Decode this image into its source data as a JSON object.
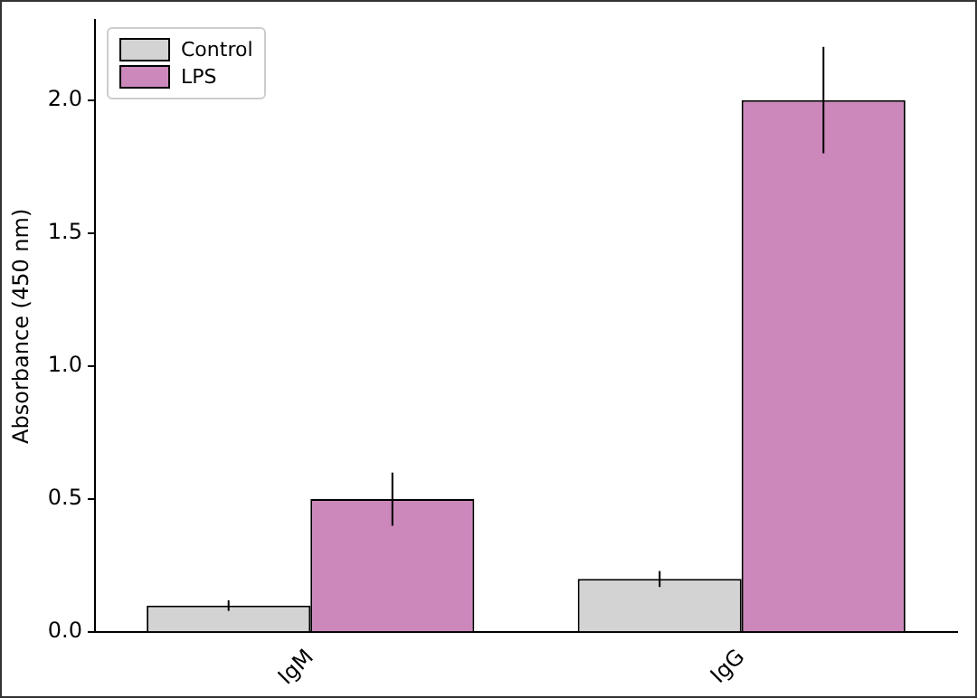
{
  "chart_data": {
    "type": "bar",
    "ylabel": "Absorbance (450 nm)",
    "categories": [
      "IgM",
      "IgG"
    ],
    "series": [
      {
        "name": "Control",
        "color": "#d3d3d3",
        "values": [
          0.1,
          0.2
        ],
        "errors": [
          0.02,
          0.03
        ]
      },
      {
        "name": "LPS",
        "color": "#cc88bb",
        "values": [
          0.5,
          2.0
        ],
        "errors": [
          0.1,
          0.2
        ]
      }
    ],
    "ylim": [
      0,
      2.3
    ],
    "yticks": [
      {
        "value": 0,
        "label": "0.0"
      },
      0.5,
      {
        "value": 1,
        "label": "1.0"
      },
      1.5,
      {
        "value": 2,
        "label": "2.0"
      }
    ],
    "grid": false,
    "legend": "top left"
  }
}
